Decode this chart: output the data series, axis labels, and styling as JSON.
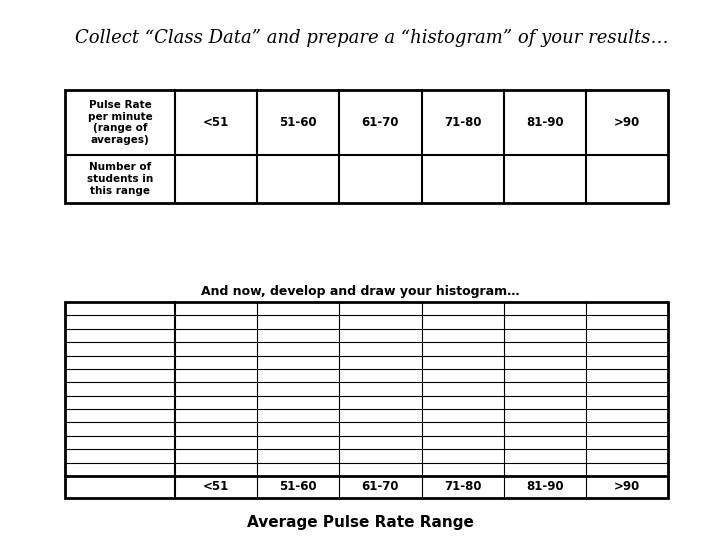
{
  "title": "Collect “Class Data” and prepare a “histogram” of your results…",
  "title_fontsize": 13,
  "table1_row1_label": "Pulse Rate\nper minute\n(range of\naverages)",
  "table1_row2_label": "Number of\nstudents in\nthis range",
  "table_cols": [
    "<51",
    "51-60",
    "61-70",
    "71-80",
    "81-90",
    ">90"
  ],
  "mid_text": "And now, develop and draw your histogram…",
  "mid_text_fontsize": 9,
  "xlabel": "Average Pulse Rate Range",
  "xlabel_fontsize": 11,
  "grid_rows": 13,
  "grid_cols": 6,
  "bg_color": "#ffffff",
  "border_color": "#000000",
  "label_fontsize": 7.5,
  "col_fontsize": 8.5,
  "row_label_fontsize": 8
}
